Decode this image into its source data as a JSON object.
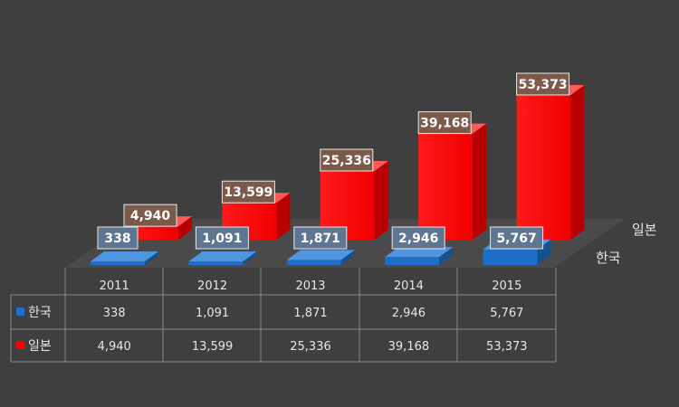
{
  "chart_data": {
    "type": "bar",
    "categories": [
      "2011",
      "2012",
      "2013",
      "2014",
      "2015"
    ],
    "series": [
      {
        "name": "한국",
        "color": "#1f6fc8",
        "values": [
          338,
          1091,
          1871,
          2946,
          5767
        ],
        "labels": [
          "338",
          "1,091",
          "1,871",
          "2,946",
          "5,767"
        ]
      },
      {
        "name": "일본",
        "color": "#ff0000",
        "values": [
          4940,
          13599,
          25336,
          39168,
          53373
        ],
        "labels": [
          "4,940",
          "13,599",
          "25,336",
          "39,168",
          "53,373"
        ]
      }
    ],
    "title": "",
    "xlabel": "",
    "ylabel": "",
    "legend": "data-table",
    "grid": false
  }
}
